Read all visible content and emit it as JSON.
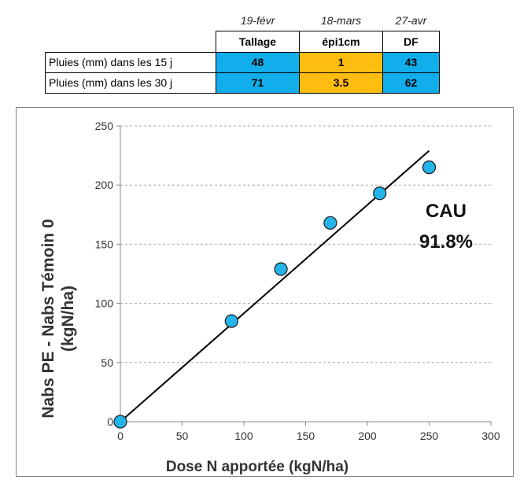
{
  "table": {
    "dates": [
      "19-févr",
      "18-mars",
      "27-avr"
    ],
    "stages": [
      "Tallage",
      "épi1cm",
      "DF"
    ],
    "rows": [
      {
        "label": "Pluies (mm) dans les 15 j",
        "values": [
          "48",
          "1",
          "43"
        ]
      },
      {
        "label": "Pluies (mm) dans les 30 j",
        "values": [
          "71",
          "3.5",
          "62"
        ]
      }
    ],
    "cell_colors": [
      "#12aeeb",
      "#ffbd12",
      "#12aeeb"
    ]
  },
  "chart_data": {
    "type": "scatter",
    "xlabel": "Dose N apportée (kgN/ha)",
    "ylabel_lines": [
      "Nabs PE - Nabs Témoin 0",
      "(kgN/ha)"
    ],
    "xlim": [
      0,
      300
    ],
    "ylim": [
      0,
      250
    ],
    "x_ticks": [
      0,
      50,
      100,
      150,
      200,
      250,
      300
    ],
    "y_ticks": [
      0,
      50,
      100,
      150,
      200,
      250
    ],
    "grid": "horizontal dashed",
    "points": [
      {
        "x": 0,
        "y": 0
      },
      {
        "x": 90,
        "y": 85
      },
      {
        "x": 130,
        "y": 129
      },
      {
        "x": 170,
        "y": 168
      },
      {
        "x": 210,
        "y": 193
      },
      {
        "x": 250,
        "y": 215
      }
    ],
    "trendline": {
      "x": [
        0,
        250
      ],
      "y": [
        0,
        229
      ]
    },
    "annotation": [
      "CAU",
      "91.8%"
    ],
    "marker_color": "#23b5ea"
  }
}
